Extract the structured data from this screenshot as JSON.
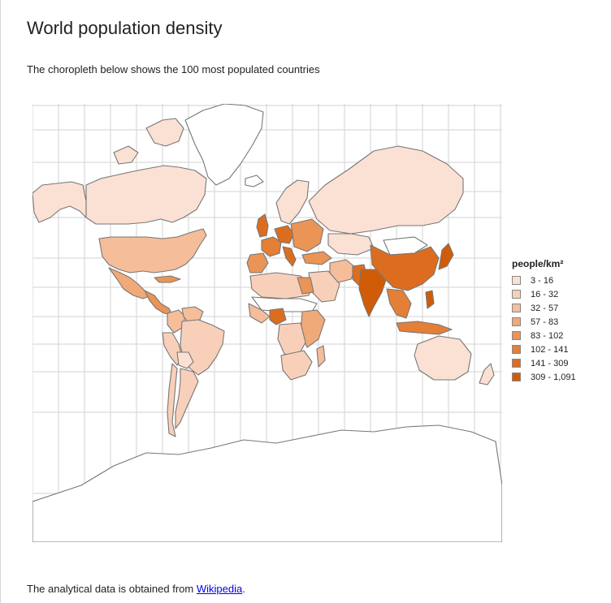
{
  "page": {
    "title": "World population density",
    "subtitle": "The choropleth below shows the 100 most populated countries",
    "footer": {
      "prefix": "The analytical data is obtained from ",
      "link_text": "Wikipedia",
      "suffix": "."
    }
  },
  "legend": {
    "title": "people/km²",
    "items": [
      {
        "label": "3 - 16",
        "color": "#fbe0d4"
      },
      {
        "label": "16 - 32",
        "color": "#f8d0b9"
      },
      {
        "label": "32 - 57",
        "color": "#f5bd99"
      },
      {
        "label": "57 - 83",
        "color": "#f0a978"
      },
      {
        "label": "83 - 102",
        "color": "#ea9456"
      },
      {
        "label": "102 - 141",
        "color": "#e37f36"
      },
      {
        "label": "141 - 309",
        "color": "#dc6d1f"
      },
      {
        "label": "309 - 1,091",
        "color": "#d05c08"
      }
    ]
  },
  "colors": {
    "gridline": "#d9d9d9",
    "border": "#777777",
    "no_data": "#ffffff"
  },
  "regions": [
    {
      "name": "alaska",
      "level": 0
    },
    {
      "name": "canada",
      "level": 0
    },
    {
      "name": "greenland",
      "level": -1
    },
    {
      "name": "usa",
      "level": 2
    },
    {
      "name": "mexico",
      "level": 3
    },
    {
      "name": "central-america",
      "level": 4
    },
    {
      "name": "colombia",
      "level": 2
    },
    {
      "name": "venezuela",
      "level": 2
    },
    {
      "name": "peru",
      "level": 1
    },
    {
      "name": "brazil",
      "level": 1
    },
    {
      "name": "bolivia",
      "level": 0
    },
    {
      "name": "argentina",
      "level": 1
    },
    {
      "name": "chile",
      "level": 1
    },
    {
      "name": "iceland",
      "level": -1
    },
    {
      "name": "uk",
      "level": 6
    },
    {
      "name": "scandinavia",
      "level": 0
    },
    {
      "name": "france",
      "level": 5
    },
    {
      "name": "iberia",
      "level": 4
    },
    {
      "name": "germany",
      "level": 6
    },
    {
      "name": "italy",
      "level": 6
    },
    {
      "name": "eastern-europe",
      "level": 4
    },
    {
      "name": "russia",
      "level": 0
    },
    {
      "name": "kazakhstan",
      "level": 0
    },
    {
      "name": "turkey",
      "level": 4
    },
    {
      "name": "iran",
      "level": 2
    },
    {
      "name": "saudi-arabia",
      "level": 1
    },
    {
      "name": "pakistan",
      "level": 6
    },
    {
      "name": "india",
      "level": 7
    },
    {
      "name": "china",
      "level": 6
    },
    {
      "name": "mongolia",
      "level": -1
    },
    {
      "name": "japan",
      "level": 7
    },
    {
      "name": "southeast-asia",
      "level": 5
    },
    {
      "name": "indonesia",
      "level": 5
    },
    {
      "name": "philippines",
      "level": 7
    },
    {
      "name": "north-africa",
      "level": 1
    },
    {
      "name": "egypt",
      "level": 4
    },
    {
      "name": "sahel",
      "level": -1
    },
    {
      "name": "west-africa",
      "level": 2
    },
    {
      "name": "nigeria",
      "level": 6
    },
    {
      "name": "east-africa",
      "level": 3
    },
    {
      "name": "congo",
      "level": 1
    },
    {
      "name": "southern-africa",
      "level": 1
    },
    {
      "name": "madagascar",
      "level": 2
    },
    {
      "name": "australia",
      "level": 0
    },
    {
      "name": "new-zealand",
      "level": 0
    }
  ]
}
